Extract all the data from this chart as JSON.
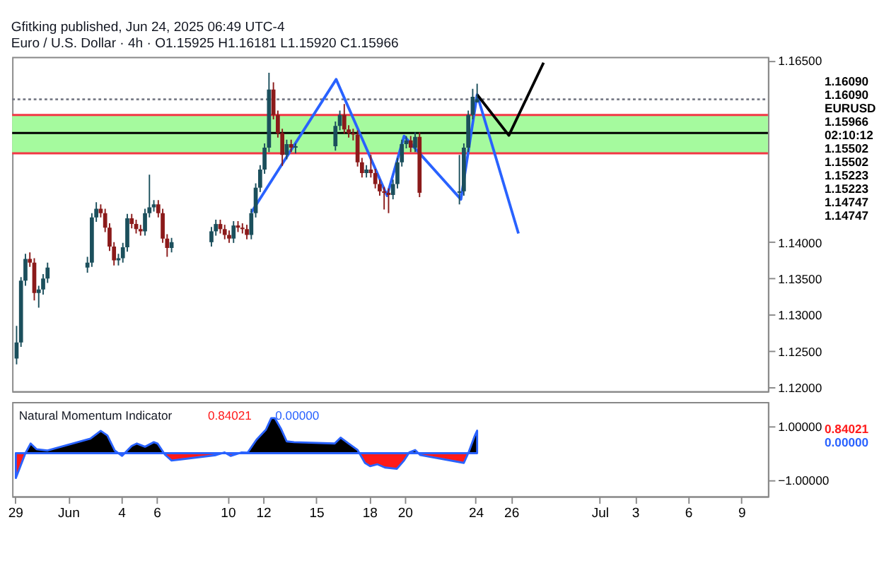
{
  "chart_data": [
    {
      "type": "candlestick",
      "title": "Euro / U.S. Dollar · 4h ·  O1.15925  H1.16181  L1.15920  C1.15966",
      "subtitle": "Gfitking published, Jun 24, 2025 06:49 UTC-4",
      "annotations": [
        "1.16090",
        "1.16090",
        "EURUSD",
        "1.15966",
        "02:10:12",
        "1.15502",
        "1.15502",
        "1.15223",
        "1.15223",
        "1.14747",
        "1.14747"
      ],
      "colors": [
        "#1b4f5c",
        "#1b4f5c",
        "#1b4f5c",
        "#8b1a1a",
        "#8b1a1a",
        "#1b4f5c",
        "#1b4f5c",
        "#1b4f5c",
        "#1b4f5c",
        "#1b4f5c",
        "#1b4f5c",
        "#8b1a1a",
        "#8b1a1a",
        "#8b1a1a",
        "#8b1a1a",
        "#1b4f5c",
        "#1b4f5c",
        "#1b4f5c",
        "#8b1a1a",
        "#8b1a1a",
        "#8b1a1a",
        "#1b4f5c",
        "#1b4f5c",
        "#1b4f5c",
        "#8b1a1a",
        "#8b1a1a",
        "#8b1a1a",
        "#1b4f5c",
        "#1b4f5c",
        "#1b4f5c",
        "#8b1a1a",
        "#8b1a1a",
        "#8b1a1a",
        "#1b4f5c",
        "#8b1a1a",
        "#8b1a1a",
        "#8b1a1a",
        "#1b4f5c",
        "#1b4f5c",
        "#1b4f5c",
        "#1b4f5c",
        "#1b4f5c",
        "#8b1a1a",
        "#8b1a1a",
        "#8b1a1a",
        "#1b4f5c",
        "#8b1a1a",
        "#1b4f5c",
        "#1b4f5c",
        "#1b4f5c",
        "#8b1a1a",
        "#8b1a1a",
        "#8b1a1a",
        "#8b1a1a",
        "#8b1a1a",
        "#1b4f5c",
        "#8b1a1a",
        "#8b1a1a",
        "#8b1a1a",
        "#8b1a1a",
        "#8b1a1a",
        "#1b4f5c",
        "#1b4f5c",
        "#1b4f5c",
        "#1b4f5c",
        "#8b1a1a",
        "#1b4f5c",
        "#8b1a1a",
        "#1b4f5c",
        "#1b4f5c",
        "#1b4f5c",
        "#1b4f5c",
        "#1b4f5c"
      ],
      "x": [
        "2025-05-29T02:00",
        "2025-05-29T08:00",
        "2025-05-29T14:00",
        "2025-05-29T20:00",
        "2025-05-30T02:00",
        "2025-05-30T08:00",
        "2025-05-30T14:00",
        "2025-05-30T20:00",
        "2025-06-02T02:00",
        "2025-06-02T08:00",
        "2025-06-02T14:00",
        "2025-06-02T20:00",
        "2025-06-03T02:00",
        "2025-06-03T08:00",
        "2025-06-03T14:00",
        "2025-06-03T20:00",
        "2025-06-04T02:00",
        "2025-06-04T08:00",
        "2025-06-04T14:00",
        "2025-06-04T20:00",
        "2025-06-05T02:00",
        "2025-06-05T08:00",
        "2025-06-05T14:00",
        "2025-06-05T20:00",
        "2025-06-06T02:00",
        "2025-06-06T08:00",
        "2025-06-06T14:00",
        "2025-06-06T20:00",
        "2025-06-09T02:00",
        "2025-06-09T08:00",
        "2025-06-09T14:00",
        "2025-06-09T20:00",
        "2025-06-10T02:00",
        "2025-06-10T08:00",
        "2025-06-10T14:00",
        "2025-06-10T20:00",
        "2025-06-11T02:00",
        "2025-06-11T08:00",
        "2025-06-11T14:00",
        "2025-06-11T20:00",
        "2025-06-12T02:00",
        "2025-06-12T08:00",
        "2025-06-12T14:00",
        "2025-06-12T20:00",
        "2025-06-13T02:00",
        "2025-06-13T08:00",
        "2025-06-13T14:00",
        "2025-06-13T20:00",
        "2025-06-16T02:00",
        "2025-06-16T08:00",
        "2025-06-16T14:00",
        "2025-06-16T20:00",
        "2025-06-17T02:00",
        "2025-06-17T08:00",
        "2025-06-17T14:00",
        "2025-06-17T20:00",
        "2025-06-18T02:00",
        "2025-06-18T08:00",
        "2025-06-18T14:00",
        "2025-06-18T20:00",
        "2025-06-19T02:00",
        "2025-06-19T08:00",
        "2025-06-19T14:00",
        "2025-06-19T20:00",
        "2025-06-20T02:00",
        "2025-06-20T08:00",
        "2025-06-20T14:00",
        "2025-06-20T20:00",
        "2025-06-23T02:00",
        "2025-06-23T08:00",
        "2025-06-23T14:00",
        "2025-06-23T20:00",
        "2025-06-24T02:00"
      ],
      "ohlc": [
        [
          1.124,
          1.1285,
          1.1232,
          1.1262
        ],
        [
          1.1262,
          1.1352,
          1.1256,
          1.1347
        ],
        [
          1.1347,
          1.1384,
          1.134,
          1.1377
        ],
        [
          1.1377,
          1.1386,
          1.1366,
          1.1372
        ],
        [
          1.1372,
          1.1378,
          1.132,
          1.133
        ],
        [
          1.133,
          1.134,
          1.131,
          1.1335
        ],
        [
          1.1335,
          1.1356,
          1.1328,
          1.135
        ],
        [
          1.135,
          1.1372,
          1.1344,
          1.1365
        ],
        [
          1.1365,
          1.138,
          1.1358,
          1.1372
        ],
        [
          1.1372,
          1.144,
          1.1366,
          1.1434
        ],
        [
          1.1434,
          1.1455,
          1.1428,
          1.1446
        ],
        [
          1.1446,
          1.1452,
          1.1434,
          1.144
        ],
        [
          1.144,
          1.1446,
          1.1414,
          1.142
        ],
        [
          1.142,
          1.1426,
          1.1388,
          1.1394
        ],
        [
          1.1394,
          1.14,
          1.1368,
          1.1375
        ],
        [
          1.1375,
          1.1384,
          1.1368,
          1.1378
        ],
        [
          1.1378,
          1.1399,
          1.1372,
          1.1393
        ],
        [
          1.1393,
          1.1439,
          1.1387,
          1.1433
        ],
        [
          1.1433,
          1.1439,
          1.1419,
          1.1425
        ],
        [
          1.1425,
          1.1431,
          1.1412,
          1.1418
        ],
        [
          1.1418,
          1.1424,
          1.1409,
          1.1415
        ],
        [
          1.1415,
          1.1446,
          1.1409,
          1.144
        ],
        [
          1.144,
          1.1493,
          1.1434,
          1.1448
        ],
        [
          1.1448,
          1.1458,
          1.1442,
          1.1452
        ],
        [
          1.1452,
          1.1458,
          1.1434,
          1.144
        ],
        [
          1.144,
          1.1446,
          1.1399,
          1.1405
        ],
        [
          1.1405,
          1.1411,
          1.138,
          1.1392
        ],
        [
          1.1392,
          1.1406,
          1.1386,
          1.14
        ],
        [
          1.14,
          1.1421,
          1.1394,
          1.1415
        ],
        [
          1.1415,
          1.1431,
          1.1409,
          1.1425
        ],
        [
          1.1425,
          1.1431,
          1.1412,
          1.1418
        ],
        [
          1.1418,
          1.1424,
          1.1404,
          1.141
        ],
        [
          1.141,
          1.1416,
          1.1399,
          1.1405
        ],
        [
          1.1405,
          1.1429,
          1.1399,
          1.1423
        ],
        [
          1.1423,
          1.1429,
          1.1414,
          1.142
        ],
        [
          1.142,
          1.1426,
          1.1412,
          1.1418
        ],
        [
          1.1418,
          1.1424,
          1.1404,
          1.141
        ],
        [
          1.141,
          1.1446,
          1.1404,
          1.144
        ],
        [
          1.144,
          1.1481,
          1.1434,
          1.1475
        ],
        [
          1.1475,
          1.1506,
          1.1469,
          1.15
        ],
        [
          1.15,
          1.1536,
          1.1494,
          1.153
        ],
        [
          1.153,
          1.1633,
          1.1524,
          1.161
        ],
        [
          1.161,
          1.162,
          1.1569,
          1.1575
        ],
        [
          1.1575,
          1.1581,
          1.1544,
          1.155
        ],
        [
          1.155,
          1.1556,
          1.1505,
          1.152
        ],
        [
          1.152,
          1.1541,
          1.1514,
          1.1535
        ],
        [
          1.1535,
          1.1541,
          1.1524,
          1.153
        ],
        [
          1.153,
          1.1536,
          1.1522,
          1.1532
        ],
        [
          1.1532,
          1.1566,
          1.1526,
          1.156
        ],
        [
          1.156,
          1.1581,
          1.1554,
          1.1575
        ],
        [
          1.1575,
          1.159,
          1.1549,
          1.1555
        ],
        [
          1.1555,
          1.1561,
          1.1544,
          1.155
        ],
        [
          1.155,
          1.1556,
          1.154,
          1.1548
        ],
        [
          1.1548,
          1.1554,
          1.1504,
          1.151
        ],
        [
          1.151,
          1.1516,
          1.1489,
          1.1495
        ],
        [
          1.1495,
          1.1506,
          1.1489,
          1.15
        ],
        [
          1.15,
          1.152,
          1.1489,
          1.1495
        ],
        [
          1.1495,
          1.1501,
          1.1474,
          1.148
        ],
        [
          1.148,
          1.1486,
          1.1464,
          1.147
        ],
        [
          1.147,
          1.1476,
          1.1445,
          1.1468
        ],
        [
          1.1468,
          1.1474,
          1.144,
          1.1465
        ],
        [
          1.1465,
          1.1486,
          1.1459,
          1.148
        ],
        [
          1.148,
          1.1516,
          1.1474,
          1.151
        ],
        [
          1.151,
          1.1541,
          1.1504,
          1.1535
        ],
        [
          1.1535,
          1.1546,
          1.1529,
          1.154
        ],
        [
          1.154,
          1.1546,
          1.1524,
          1.153
        ],
        [
          1.153,
          1.1551,
          1.1524,
          1.1545
        ],
        [
          1.1545,
          1.1551,
          1.1462,
          1.1468
        ],
        [
          1.1468,
          1.152,
          1.1452,
          1.147
        ],
        [
          1.147,
          1.1536,
          1.1464,
          1.153
        ],
        [
          1.153,
          1.1581,
          1.1524,
          1.1575
        ],
        [
          1.1575,
          1.1611,
          1.1569,
          1.16
        ],
        [
          1.15925,
          1.16181,
          1.1592,
          1.15966
        ]
      ],
      "series": [
        {
          "type": "line",
          "color": "#2962ff",
          "x": [
            "2025-06-11T08:00",
            "2025-06-16T03:00",
            "2025-06-19T00:00",
            "2025-06-19T23:00",
            "2025-06-23T04:00",
            "2025-06-24T02:00",
            "2025-06-26T10:00"
          ],
          "values": [
            1.1441,
            1.1624,
            1.1464,
            1.1546,
            1.1459,
            1.1603,
            1.1412
          ]
        },
        {
          "type": "line",
          "color": "#000000",
          "x": [
            "2025-06-24T02:00",
            "2025-06-25T21:00",
            "2025-06-27T20:00"
          ],
          "values": [
            1.1603,
            1.1547,
            1.1647
          ]
        }
      ],
      "bands": [
        {
          "axis": "y",
          "from": 1.15223,
          "to": 1.1575,
          "color": "#a5fa9e"
        }
      ],
      "ref_lines": [
        {
          "axis": "y",
          "value": 1.1575,
          "color": "#f23645"
        },
        {
          "axis": "y",
          "value": 1.15223,
          "color": "#f23645"
        },
        {
          "axis": "y",
          "value": 1.15502,
          "color": "#000000"
        },
        {
          "axis": "y",
          "value": 1.15966,
          "color": "#787b86",
          "line_style": "dotted"
        }
      ],
      "xlim": [
        "2025-05-28T20:00",
        "2025-07-10T12:00"
      ],
      "ylim": [
        1.1195,
        1.1655
      ],
      "yticks": [
        {
          "value": 1.12,
          "label": "1.12000"
        },
        {
          "value": 1.125,
          "label": "1.12500"
        },
        {
          "value": 1.13,
          "label": "1.13000"
        },
        {
          "value": 1.135,
          "label": "1.13500"
        },
        {
          "value": 1.14,
          "label": "1.14000"
        },
        {
          "value": 1.165,
          "label": "1.16500"
        }
      ],
      "tick_labels": "y",
      "grid": false
    },
    {
      "type": "area",
      "title": "Natural Momentum Indicator",
      "annotations": [
        "0.84021",
        "0.00000",
        "0.84021",
        "0.00000"
      ],
      "series": [
        {
          "type": "area",
          "color": "#2962ff",
          "colors": [
            "#ff1a1a",
            "#000000",
            "#000000",
            "#000000",
            "#000000",
            "#000000",
            "#000000",
            "#000000",
            "#000000",
            "#ff1a1a",
            "#000000",
            "#000000",
            "#000000",
            "#000000",
            "#000000",
            "#ff1a1a",
            "#ff1a1a",
            "#ff1a1a",
            "#000000",
            "#ff1a1a",
            "#000000",
            "#000000",
            "#000000",
            "#000000",
            "#000000",
            "#000000",
            "#000000",
            "#000000",
            "#000000",
            "#000000",
            "#000000",
            "#000000",
            "#000000",
            "#ff1a1a",
            "#ff1a1a",
            "#ff1a1a",
            "#ff1a1a",
            "#ff1a1a",
            "#ff1a1a",
            "#000000",
            "#000000",
            "#ff1a1a",
            "#ff1a1a",
            "#000000",
            "#000000",
            "#000000"
          ],
          "x": [
            "2025-05-29T01:00",
            "2025-05-29T14:00",
            "2025-05-29T21:00",
            "2025-05-30T05:00",
            "2025-05-30T20:00",
            "2025-06-02T06:00",
            "2025-06-02T20:00",
            "2025-06-03T05:00",
            "2025-06-03T15:00",
            "2025-06-04T01:00",
            "2025-06-04T14:00",
            "2025-06-04T21:00",
            "2025-06-05T08:00",
            "2025-06-05T20:00",
            "2025-06-06T01:00",
            "2025-06-06T11:00",
            "2025-06-06T20:00",
            "2025-06-09T08:00",
            "2025-06-09T20:00",
            "2025-06-10T04:00",
            "2025-06-10T19:00",
            "2025-06-11T03:00",
            "2025-06-11T15:00",
            "2025-06-12T04:00",
            "2025-06-12T11:00",
            "2025-06-12T16:00",
            "2025-06-13T00:00",
            "2025-06-13T08:00",
            "2025-06-13T18:00",
            "2025-06-16T01:00",
            "2025-06-16T09:00",
            "2025-06-16T19:00",
            "2025-06-17T08:00",
            "2025-06-17T18:00",
            "2025-06-18T01:00",
            "2025-06-18T11:00",
            "2025-06-18T21:00",
            "2025-06-19T13:00",
            "2025-06-19T23:00",
            "2025-06-20T06:00",
            "2025-06-20T14:00",
            "2025-06-20T21:00",
            "2025-06-23T08:00",
            "2025-06-23T15:00",
            "2025-06-23T23:00",
            "2025-06-24T02:00"
          ],
          "values": [
            -0.92,
            0,
            0.36,
            0.15,
            0.1,
            0.54,
            0.83,
            0.66,
            0.1,
            -0.1,
            0.27,
            0.36,
            0.24,
            0.41,
            0.36,
            -0.05,
            -0.27,
            -0.07,
            0.03,
            -0.1,
            0.03,
            0.02,
            0.5,
            0.88,
            1.3,
            1.3,
            0.92,
            0.44,
            0.41,
            0.36,
            0.58,
            0.38,
            0.12,
            -0.36,
            -0.48,
            -0.41,
            -0.53,
            -0.58,
            -0.27,
            0.03,
            0.12,
            -0.07,
            -0.36,
            0.07,
            0.66,
            0.84
          ]
        }
      ],
      "xlim": [
        "2025-05-28T20:00",
        "2025-07-10T12:00"
      ],
      "ylim": [
        -1.6,
        1.9
      ],
      "xticks": [
        {
          "value": "2025-05-29",
          "label": "29"
        },
        {
          "value": "2025-06-01",
          "label": "Jun"
        },
        {
          "value": "2025-06-04",
          "label": "4"
        },
        {
          "value": "2025-06-06",
          "label": "6"
        },
        {
          "value": "2025-06-10",
          "label": "10"
        },
        {
          "value": "2025-06-12",
          "label": "12"
        },
        {
          "value": "2025-06-15",
          "label": "15"
        },
        {
          "value": "2025-06-18",
          "label": "18"
        },
        {
          "value": "2025-06-20",
          "label": "20"
        },
        {
          "value": "2025-06-24",
          "label": "24"
        },
        {
          "value": "2025-06-26",
          "label": "26"
        },
        {
          "value": "2025-07-01",
          "label": "Jul"
        },
        {
          "value": "2025-07-03",
          "label": "3"
        },
        {
          "value": "2025-07-06",
          "label": "6"
        },
        {
          "value": "2025-07-09",
          "label": "9"
        }
      ],
      "yticks": [
        {
          "value": 1,
          "label": "1.00000"
        },
        {
          "value": -1,
          "label": "−1.00000"
        }
      ],
      "grid": false
    }
  ]
}
